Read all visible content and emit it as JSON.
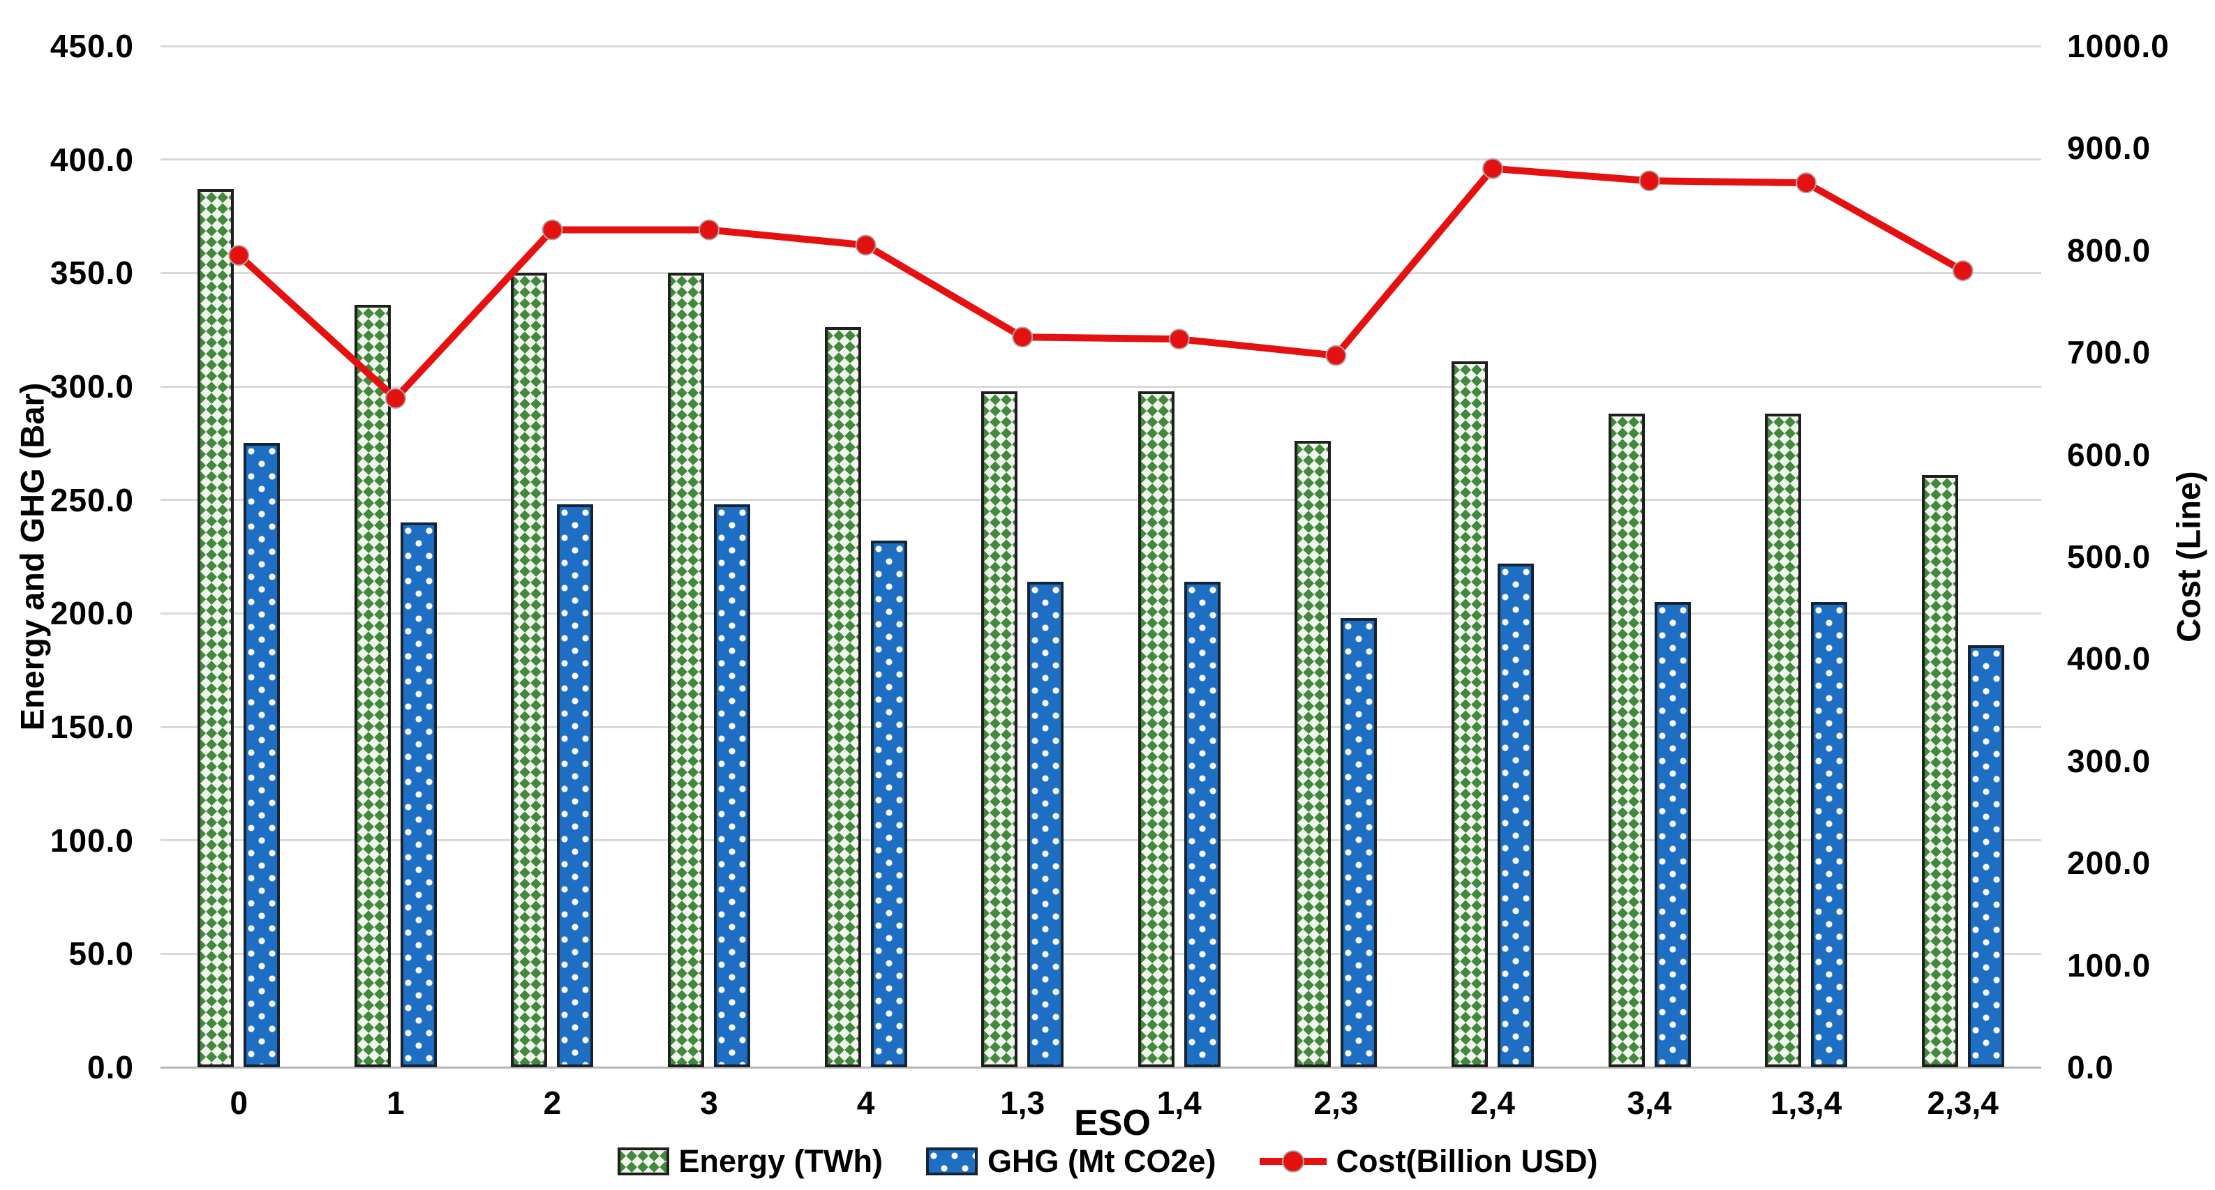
{
  "chart": {
    "left_axis_title": "Energy and GHG (Bar)",
    "right_axis_title": "Cost (Line)",
    "x_axis_title": "ESO",
    "left_ticks": [
      "450.0",
      "400.0",
      "350.0",
      "300.0",
      "250.0",
      "200.0",
      "150.0",
      "100.0",
      "50.0",
      "0.0"
    ],
    "right_ticks": [
      "1000.0",
      "900.0",
      "800.0",
      "700.0",
      "600.0",
      "500.0",
      "400.0",
      "300.0",
      "200.0",
      "100.0",
      "0.0"
    ]
  },
  "chart_data": {
    "type": "combo-bar-line",
    "categories": [
      "0",
      "1",
      "2",
      "3",
      "4",
      "1,3",
      "1,4",
      "2,3",
      "2,4",
      "3,4",
      "1,3,4",
      "2,3,4"
    ],
    "series": [
      {
        "name": "Energy (TWh)",
        "type": "bar",
        "axis": "left",
        "values": [
          387,
          336,
          350,
          350,
          326,
          298,
          298,
          276,
          311,
          288,
          288,
          261
        ]
      },
      {
        "name": "GHG (Mt CO2e)",
        "type": "bar",
        "axis": "left",
        "values": [
          275,
          240,
          248,
          248,
          232,
          214,
          214,
          198,
          222,
          205,
          205,
          186
        ]
      },
      {
        "name": "Cost(Billion USD)",
        "type": "line",
        "axis": "right",
        "values": [
          795,
          655,
          820,
          820,
          805,
          715,
          713,
          697,
          880,
          868,
          866,
          780
        ]
      }
    ],
    "left_axis": {
      "title": "Energy and GHG (Bar)",
      "min": 0,
      "max": 450,
      "step": 50
    },
    "right_axis": {
      "title": "Cost (Line)",
      "min": 0,
      "max": 1000,
      "step": 100
    },
    "xlabel": "ESO",
    "grid": true,
    "legend_position": "bottom",
    "legend": [
      "Energy (TWh)",
      "GHG (Mt CO2e)",
      "Cost(Billion USD)"
    ]
  },
  "colors": {
    "energy_pattern_green": "#43883f",
    "energy_pattern_bg": "#f1f6ec",
    "ghg_blue": "#1e6fc4",
    "ghg_dot": "#ffffff",
    "cost_red": "#e51111",
    "gridline": "#d9d9d9",
    "axis_line": "#b7b7b7",
    "text": "#000000"
  }
}
